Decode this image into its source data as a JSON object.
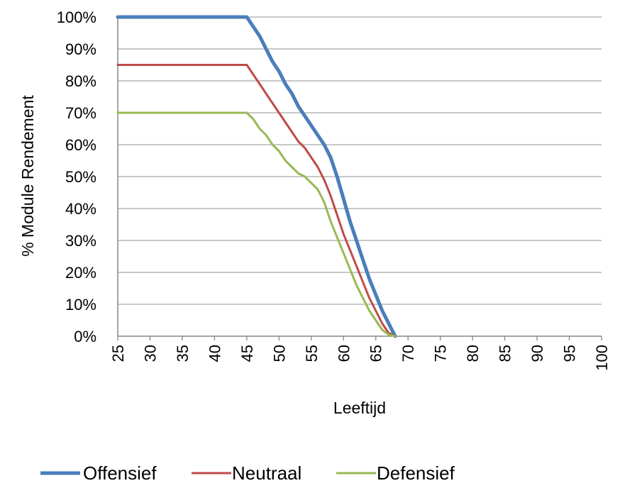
{
  "chart_data": {
    "type": "line",
    "xlabel": "Leeftijd",
    "ylabel": "% Module Rendement",
    "xlim": [
      25,
      100
    ],
    "ylim": [
      0,
      100
    ],
    "x_ticks": [
      25,
      30,
      35,
      40,
      45,
      50,
      55,
      60,
      65,
      70,
      75,
      80,
      85,
      90,
      95,
      100
    ],
    "y_tick_labels": [
      "0%",
      "10%",
      "20%",
      "30%",
      "40%",
      "50%",
      "60%",
      "70%",
      "80%",
      "90%",
      "100%"
    ],
    "y_ticks": [
      0,
      10,
      20,
      30,
      40,
      50,
      60,
      70,
      80,
      90,
      100
    ],
    "grid": "horizontal",
    "legend_position": "bottom",
    "series": [
      {
        "name": "Offensief",
        "color": "#4a7ebb",
        "points": [
          [
            25,
            100
          ],
          [
            45,
            100
          ],
          [
            46,
            97
          ],
          [
            47,
            94
          ],
          [
            48,
            90
          ],
          [
            49,
            86
          ],
          [
            50,
            83
          ],
          [
            51,
            79
          ],
          [
            52,
            76
          ],
          [
            53,
            72
          ],
          [
            54,
            69
          ],
          [
            55,
            66
          ],
          [
            56,
            63
          ],
          [
            57,
            60
          ],
          [
            58,
            56
          ],
          [
            59,
            50
          ],
          [
            60,
            43
          ],
          [
            61,
            36
          ],
          [
            62,
            30
          ],
          [
            63,
            24
          ],
          [
            64,
            18
          ],
          [
            65,
            13
          ],
          [
            66,
            8
          ],
          [
            67,
            4
          ],
          [
            68,
            0
          ]
        ]
      },
      {
        "name": "Neutraal",
        "color": "#be4b48",
        "points": [
          [
            25,
            85
          ],
          [
            45,
            85
          ],
          [
            46,
            82
          ],
          [
            47,
            79
          ],
          [
            48,
            76
          ],
          [
            49,
            73
          ],
          [
            50,
            70
          ],
          [
            51,
            67
          ],
          [
            52,
            64
          ],
          [
            53,
            61
          ],
          [
            54,
            59
          ],
          [
            55,
            56
          ],
          [
            56,
            53
          ],
          [
            57,
            49
          ],
          [
            58,
            44
          ],
          [
            59,
            38
          ],
          [
            60,
            32
          ],
          [
            61,
            27
          ],
          [
            62,
            22
          ],
          [
            63,
            17
          ],
          [
            64,
            12
          ],
          [
            65,
            8
          ],
          [
            66,
            4
          ],
          [
            67,
            1
          ],
          [
            68,
            0
          ]
        ]
      },
      {
        "name": "Defensief",
        "color": "#98b954",
        "points": [
          [
            25,
            70
          ],
          [
            45,
            70
          ],
          [
            46,
            68
          ],
          [
            47,
            65
          ],
          [
            48,
            63
          ],
          [
            49,
            60
          ],
          [
            50,
            58
          ],
          [
            51,
            55
          ],
          [
            52,
            53
          ],
          [
            53,
            51
          ],
          [
            54,
            50
          ],
          [
            55,
            48
          ],
          [
            56,
            46
          ],
          [
            57,
            42
          ],
          [
            58,
            36
          ],
          [
            59,
            31
          ],
          [
            60,
            26
          ],
          [
            61,
            21
          ],
          [
            62,
            16
          ],
          [
            63,
            12
          ],
          [
            64,
            8
          ],
          [
            65,
            5
          ],
          [
            66,
            2
          ],
          [
            67,
            0.5
          ],
          [
            68,
            0
          ]
        ]
      }
    ]
  }
}
